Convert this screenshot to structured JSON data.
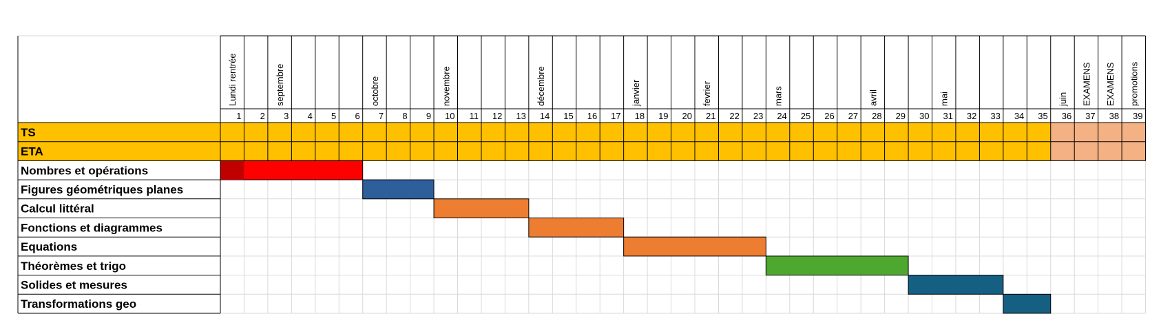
{
  "chart_data": {
    "type": "gantt",
    "title": "",
    "weeks": [
      1,
      2,
      3,
      4,
      5,
      6,
      7,
      8,
      9,
      10,
      11,
      12,
      13,
      14,
      15,
      16,
      17,
      18,
      19,
      20,
      21,
      22,
      23,
      24,
      25,
      26,
      27,
      28,
      29,
      30,
      31,
      32,
      33,
      34,
      35,
      36,
      37,
      38,
      39
    ],
    "week_headers": [
      {
        "week": 1,
        "text": "Lundi rentrée"
      },
      {
        "week": 3,
        "text": "septembre"
      },
      {
        "week": 7,
        "text": "octobre"
      },
      {
        "week": 10,
        "text": "novembre"
      },
      {
        "week": 14,
        "text": "décembre"
      },
      {
        "week": 18,
        "text": "janvier"
      },
      {
        "week": 21,
        "text": "fevrier"
      },
      {
        "week": 24,
        "text": "mars"
      },
      {
        "week": 28,
        "text": "avril"
      },
      {
        "week": 31,
        "text": "mai"
      },
      {
        "week": 36,
        "text": "juin"
      },
      {
        "week": 37,
        "text": "EXAMENS"
      },
      {
        "week": 38,
        "text": "EXAMENS"
      },
      {
        "week": 39,
        "text": "promotions"
      }
    ],
    "class_rows": [
      {
        "label": "TS",
        "color": "#FFC000",
        "end_color": "#F4B183",
        "end_from_week": 36
      },
      {
        "label": "ETA",
        "color": "#FFC000",
        "end_color": "#F4B183",
        "end_from_week": 36
      }
    ],
    "tasks": [
      {
        "label": "Nombres et opérations",
        "start_week": 1,
        "end_week": 6,
        "color": "#FF0000",
        "first_week_color": "#C00000"
      },
      {
        "label": "Figures géométriques planes",
        "start_week": 7,
        "end_week": 9,
        "color": "#2E5F9A"
      },
      {
        "label": "Calcul littéral",
        "start_week": 10,
        "end_week": 13,
        "color": "#ED7D31"
      },
      {
        "label": "Fonctions et diagrammes",
        "start_week": 14,
        "end_week": 17,
        "color": "#ED7D31"
      },
      {
        "label": "Equations",
        "start_week": 18,
        "end_week": 23,
        "color": "#ED7D31"
      },
      {
        "label": "Théorèmes et trigo",
        "start_week": 24,
        "end_week": 29,
        "color": "#4EA72E"
      },
      {
        "label": "Solides et mesures",
        "start_week": 30,
        "end_week": 33,
        "color": "#156082"
      },
      {
        "label": "Transformations geo",
        "start_week": 34,
        "end_week": 35,
        "color": "#156082"
      }
    ]
  }
}
